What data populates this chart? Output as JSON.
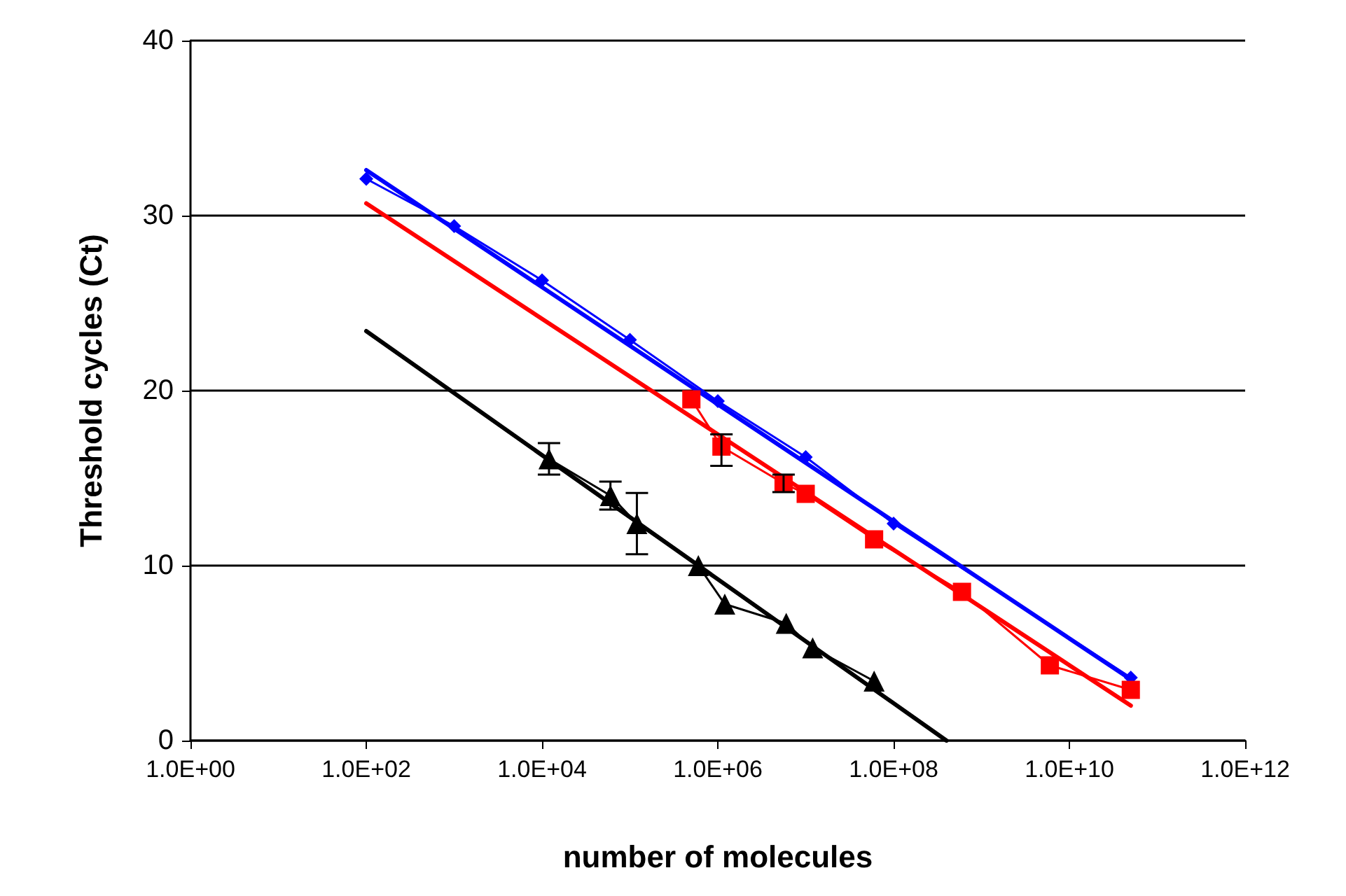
{
  "chart_data": {
    "type": "line",
    "xlabel": "number of molecules",
    "ylabel": "Threshold cycles (Ct)",
    "log": "x",
    "xlim": [
      1,
      1000000000000
    ],
    "ylim": [
      0,
      40
    ],
    "xticks": [
      {
        "value": 1,
        "label": "1.0E+00"
      },
      {
        "value": 100,
        "label": "1.0E+02"
      },
      {
        "value": 10000,
        "label": "1.0E+04"
      },
      {
        "value": 1000000,
        "label": "1.0E+06"
      },
      {
        "value": 100000000,
        "label": "1.0E+08"
      },
      {
        "value": 10000000000,
        "label": "1.0E+10"
      },
      {
        "value": 1000000000000,
        "label": "1.0E+12"
      }
    ],
    "yticks": [
      0,
      10,
      20,
      30,
      40
    ],
    "grid": "y",
    "series": [
      {
        "color": "#0000ff",
        "marker": "diamond",
        "x": [
          100,
          1000,
          10000,
          100000,
          1000000,
          10000000,
          100000000,
          50000000000
        ],
        "values": [
          32.1,
          29.4,
          26.3,
          22.9,
          19.4,
          16.2,
          12.4,
          3.6
        ]
      },
      {
        "color": "#ff0000",
        "marker": "square",
        "x": [
          500000,
          1100000,
          5600000,
          10000000,
          60000000,
          600000000,
          6000000000,
          50000000000
        ],
        "values": [
          19.5,
          16.8,
          14.7,
          14.1,
          11.5,
          8.5,
          4.3,
          2.9
        ],
        "errors": [
          null,
          [
            15.7,
            17.5
          ],
          0.5,
          null,
          null,
          null,
          null,
          null
        ]
      },
      {
        "color": "#000000",
        "marker": "triangle",
        "x": [
          12000,
          60000,
          120000,
          600000,
          1200000,
          6000000,
          12000000,
          60000000
        ],
        "values": [
          16.1,
          14.0,
          12.4,
          10.0,
          7.8,
          6.7,
          5.3,
          3.4
        ],
        "errors": [
          0.9,
          0.8,
          1.75,
          null,
          null,
          null,
          null,
          null
        ]
      },
      {
        "color": "#0000ff",
        "marker": "none",
        "x": [
          100,
          50000000000
        ],
        "values": [
          32.6,
          3.5
        ]
      },
      {
        "color": "#ff0000",
        "marker": "none",
        "x": [
          100,
          50000000000
        ],
        "values": [
          30.7,
          2.0
        ]
      },
      {
        "color": "#000000",
        "marker": "none",
        "x": [
          100,
          400000000
        ],
        "values": [
          23.4,
          0
        ]
      }
    ]
  }
}
